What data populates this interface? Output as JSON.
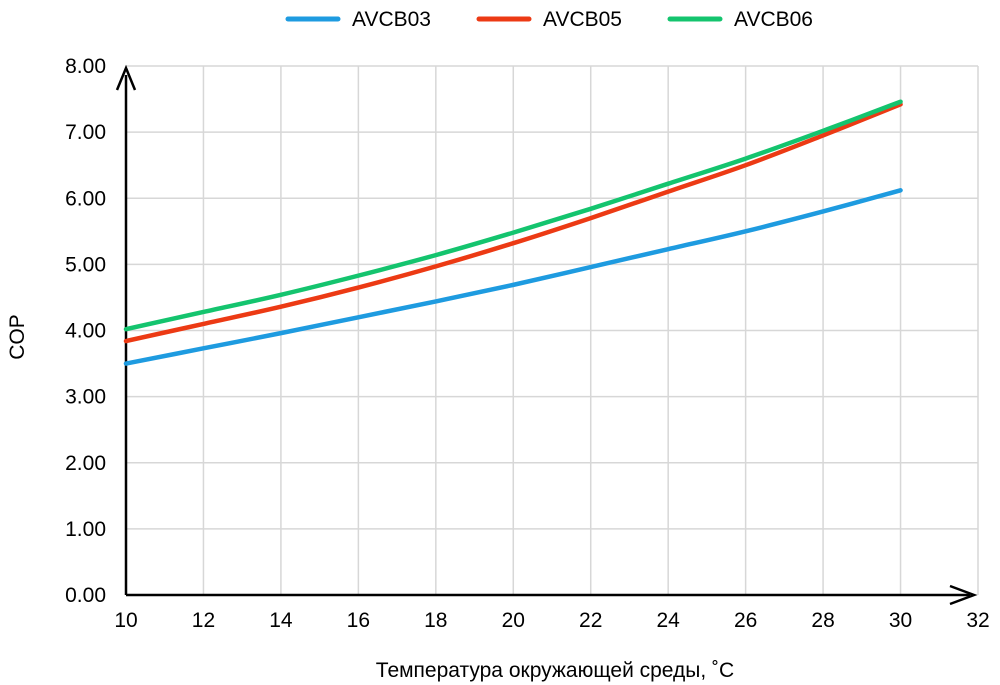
{
  "chart_data": {
    "type": "line",
    "title": "",
    "xlabel": "Температура окружающей среды, ˚С",
    "ylabel": "COP",
    "xlim": [
      10,
      32
    ],
    "ylim": [
      0,
      8
    ],
    "x_ticks": [
      "10",
      "12",
      "14",
      "16",
      "18",
      "20",
      "22",
      "24",
      "26",
      "28",
      "30",
      "32"
    ],
    "y_ticks": [
      "0.00",
      "1.00",
      "2.00",
      "3.00",
      "4.00",
      "5.00",
      "6.00",
      "7.00",
      "8.00"
    ],
    "grid": true,
    "legend_position": "top-center",
    "x": [
      10,
      12,
      14,
      16,
      18,
      20,
      22,
      24,
      26,
      28,
      30
    ],
    "series": [
      {
        "name": "AVCB03",
        "color": "#1e9be0",
        "values": [
          3.5,
          3.73,
          3.96,
          4.2,
          4.44,
          4.69,
          4.96,
          5.23,
          5.5,
          5.8,
          6.12
        ]
      },
      {
        "name": "AVCB05",
        "color": "#ec3a14",
        "values": [
          3.84,
          4.1,
          4.36,
          4.65,
          4.97,
          5.32,
          5.7,
          6.1,
          6.5,
          6.95,
          7.42
        ]
      },
      {
        "name": "AVCB06",
        "color": "#14c46e",
        "values": [
          4.02,
          4.28,
          4.54,
          4.83,
          5.14,
          5.48,
          5.84,
          6.22,
          6.6,
          7.02,
          7.46
        ]
      }
    ]
  }
}
